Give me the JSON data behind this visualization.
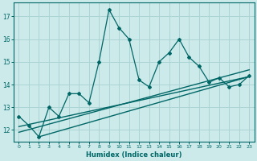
{
  "title": "",
  "xlabel": "Humidex (Indice chaleur)",
  "ylabel": "",
  "bg_color": "#cceaea",
  "grid_color": "#add4d4",
  "line_color": "#006666",
  "xlim": [
    -0.5,
    23.5
  ],
  "ylim": [
    11.5,
    17.6
  ],
  "yticks": [
    12,
    13,
    14,
    15,
    16,
    17
  ],
  "xticks": [
    0,
    1,
    2,
    3,
    4,
    5,
    6,
    7,
    8,
    9,
    10,
    11,
    12,
    13,
    14,
    15,
    16,
    17,
    18,
    19,
    20,
    21,
    22,
    23
  ],
  "main_x": [
    0,
    1,
    2,
    3,
    4,
    5,
    6,
    7,
    8,
    9,
    10,
    11,
    12,
    13,
    14,
    15,
    16,
    17,
    18,
    19,
    20,
    21,
    22,
    23
  ],
  "main_y": [
    12.6,
    12.2,
    11.7,
    13.0,
    12.6,
    13.6,
    13.6,
    13.2,
    15.0,
    17.3,
    16.5,
    16.0,
    14.2,
    13.9,
    15.0,
    15.4,
    16.0,
    15.2,
    14.8,
    14.1,
    14.3,
    13.9,
    14.0,
    14.4
  ],
  "trend1_x": [
    0,
    23
  ],
  "trend1_y": [
    12.15,
    14.35
  ],
  "trend2_x": [
    0,
    23
  ],
  "trend2_y": [
    11.9,
    14.65
  ],
  "trend3_x": [
    2,
    23
  ],
  "trend3_y": [
    11.7,
    14.35
  ]
}
